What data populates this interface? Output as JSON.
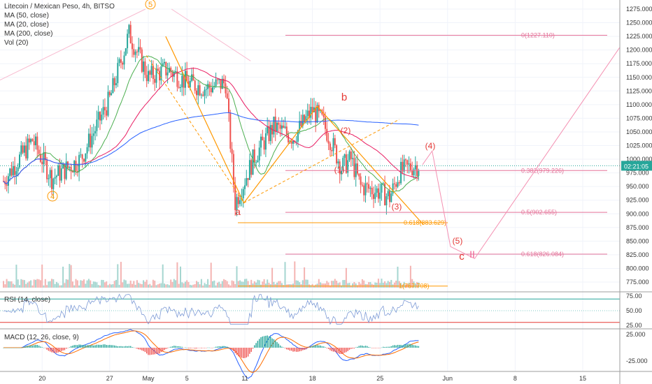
{
  "header": {
    "title": "Litecoin / Mexican Peso, 4h, BITSO",
    "indicators": [
      "MA (50, close)",
      "MA (20, close)",
      "MA (200, close)",
      "Vol (20)"
    ]
  },
  "price_axis": {
    "labels": [
      "1275.000",
      "1250.000",
      "1225.000",
      "1200.000",
      "1175.000",
      "1150.000",
      "1125.000",
      "1100.000",
      "1075.000",
      "1050.000",
      "1025.000",
      "1000.000",
      "975.000",
      "950.000",
      "925.000",
      "900.000",
      "875.000",
      "850.000",
      "825.000",
      "800.000",
      "775.000"
    ],
    "current_tag": "02:21:05"
  },
  "time_axis": {
    "labels": [
      "20",
      "27",
      "May",
      "5",
      "11",
      "18",
      "25",
      "Jun",
      "8",
      "15"
    ]
  },
  "rsi_panel": {
    "label": "RSI (14, close)",
    "ticks": [
      "75.00",
      "50.00",
      "25.00"
    ]
  },
  "macd_panel": {
    "label": "MACD (12, 26, close, 9)",
    "ticks": [
      "25.000",
      "-25.000"
    ]
  },
  "fib_labels": {
    "f0": "0(1227.110)",
    "f0382": "0.382(979.226)",
    "f05": "0.5(902.655)",
    "f0618_upper": "0.618(883.629)",
    "f0618_lower": "0.618(826.084)",
    "f1": "1(767.708)"
  },
  "wave_labels": {
    "w5_top": "5",
    "w4_left": "4",
    "a": "a",
    "b": "b",
    "c": "c",
    "w1": "(1)",
    "w2": "(2)",
    "w3": "(3)",
    "w4": "(4)",
    "w5": "(5)",
    "roman2": "II"
  },
  "colors": {
    "up": "#26a69a",
    "down": "#ef5350",
    "ma50": "#e91e63",
    "ma20": "#4caf50",
    "ma200": "#2962ff",
    "wave": "#ff9800",
    "fib": "#e57399",
    "label_red": "#e53935"
  },
  "chart_data": {
    "type": "candlestick",
    "title": "Litecoin / Mexican Peso, 4h, BITSO",
    "ylim": [
      760,
      1285
    ],
    "x_ticks": [
      "20",
      "27",
      "May",
      "5",
      "11",
      "18",
      "25",
      "Jun",
      "8",
      "15"
    ],
    "anchors": {
      "x": [
        "Apr 16",
        "Apr 19",
        "Apr 21",
        "Apr 24",
        "Apr 27",
        "Apr 29",
        "May 1",
        "May 3",
        "May 5",
        "May 7",
        "May 9",
        "May 10",
        "May 12",
        "May 14",
        "May 16",
        "May 18",
        "May 19",
        "May 20",
        "May 21",
        "May 22",
        "May 23",
        "May 25",
        "May 26",
        "May 27",
        "May 28",
        "May 29"
      ],
      "close": [
        960,
        1035,
        965,
        1000,
        1110,
        1230,
        1150,
        1165,
        1140,
        1130,
        1140,
        920,
        1005,
        1060,
        1040,
        1090,
        1070,
        1030,
        985,
        1000,
        950,
        940,
        930,
        975,
        985,
        990
      ]
    },
    "fib_levels": [
      {
        "ratio": "0",
        "value": 1227.11
      },
      {
        "ratio": "0.382",
        "value": 979.226
      },
      {
        "ratio": "0.5",
        "value": 902.655
      },
      {
        "ratio": "0.618",
        "value": 883.629
      },
      {
        "ratio": "0.618",
        "value": 826.084
      },
      {
        "ratio": "1",
        "value": 767.708
      }
    ],
    "current_price": 988,
    "rsi": {
      "ylim": [
        25,
        75
      ],
      "levels": [
        70,
        30
      ],
      "last": 55
    },
    "macd": {
      "ylim": [
        -40,
        32
      ]
    }
  }
}
